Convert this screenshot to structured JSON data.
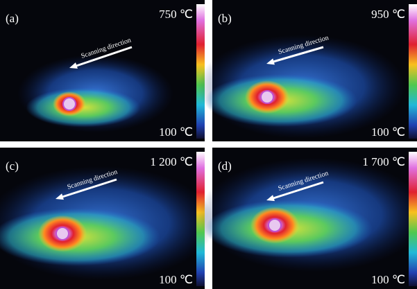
{
  "panels": [
    {
      "label": "(a)",
      "max_temp": "750 ℃",
      "min_temp": "100 ℃",
      "annotation": "Scanning direction"
    },
    {
      "label": "(b)",
      "max_temp": "950 ℃",
      "min_temp": "100 ℃",
      "annotation": "Scanning direction"
    },
    {
      "label": "(c)",
      "max_temp": "1 200 ℃",
      "min_temp": "100 ℃",
      "annotation": "Scanning direction"
    },
    {
      "label": "(d)",
      "max_temp": "1 700 ℃",
      "min_temp": "100 ℃",
      "annotation": "Scanning direction"
    }
  ]
}
